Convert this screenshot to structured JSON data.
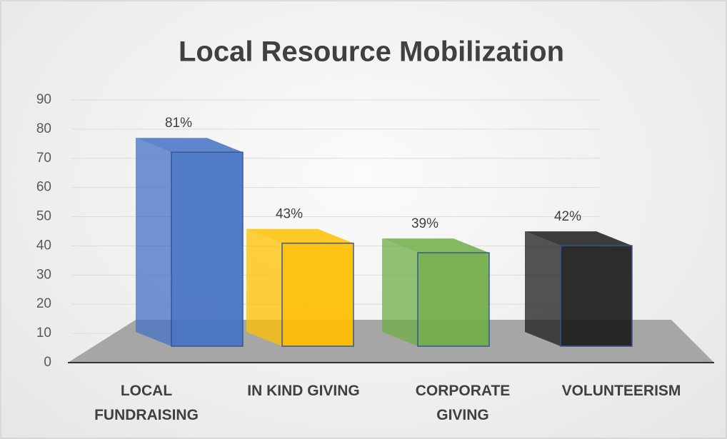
{
  "chart_data": {
    "type": "bar3d",
    "title": "Local Resource Mobilization",
    "categories": [
      "LOCAL FUNDRAISING",
      "IN KIND GIVING",
      "CORPORATE GIVING",
      "VOLUNTEERISM"
    ],
    "values": [
      81,
      43,
      39,
      42
    ],
    "value_labels": [
      "81%",
      "43%",
      "39%",
      "42%"
    ],
    "colors": [
      "#4472c4",
      "#ffc000",
      "#70ad47",
      "#1c1c1c"
    ],
    "ylim": [
      0,
      90
    ],
    "yticks": [
      0,
      10,
      20,
      30,
      40,
      50,
      60,
      70,
      80,
      90
    ],
    "grid": true
  }
}
